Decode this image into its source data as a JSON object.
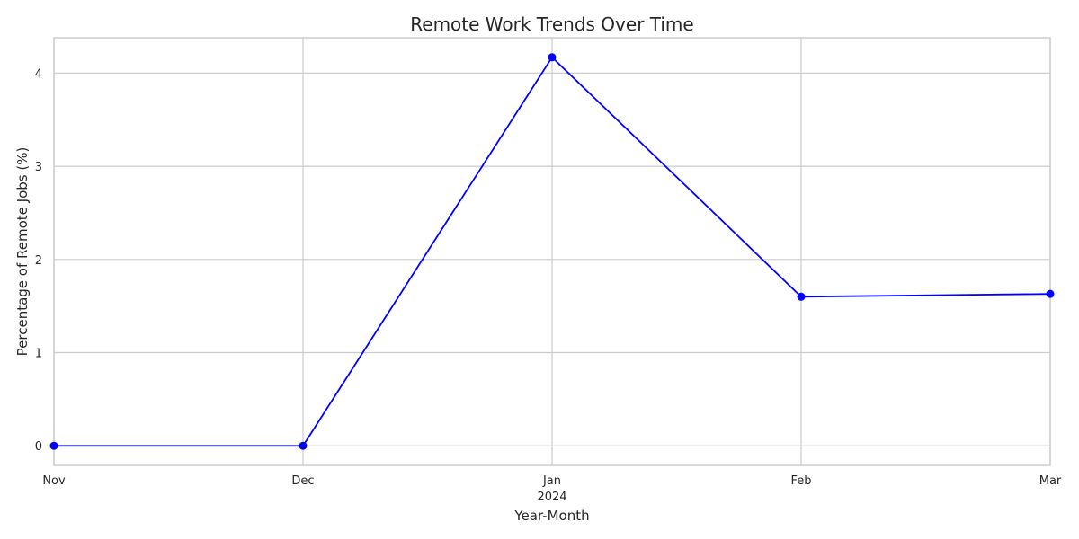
{
  "chart_data": {
    "type": "line",
    "title": "Remote Work Trends Over Time",
    "xlabel": "Year-Month",
    "ylabel": "Percentage of Remote Jobs (%)",
    "x": [
      "2023-11",
      "2023-12",
      "2024-01",
      "2024-02",
      "2024-03"
    ],
    "x_tick_labels": [
      "Nov",
      "Dec",
      "Jan",
      "Feb",
      "Mar"
    ],
    "x_tick_year_label": "2024",
    "series": [
      {
        "values": [
          0.0,
          0.0,
          4.17,
          1.6,
          1.63
        ],
        "color": "#0000ff",
        "marker": "circle"
      }
    ],
    "y_ticks": [
      0,
      1,
      2,
      3,
      4
    ],
    "ylim": [
      -0.21,
      4.38
    ],
    "grid": true,
    "legend": "none"
  }
}
